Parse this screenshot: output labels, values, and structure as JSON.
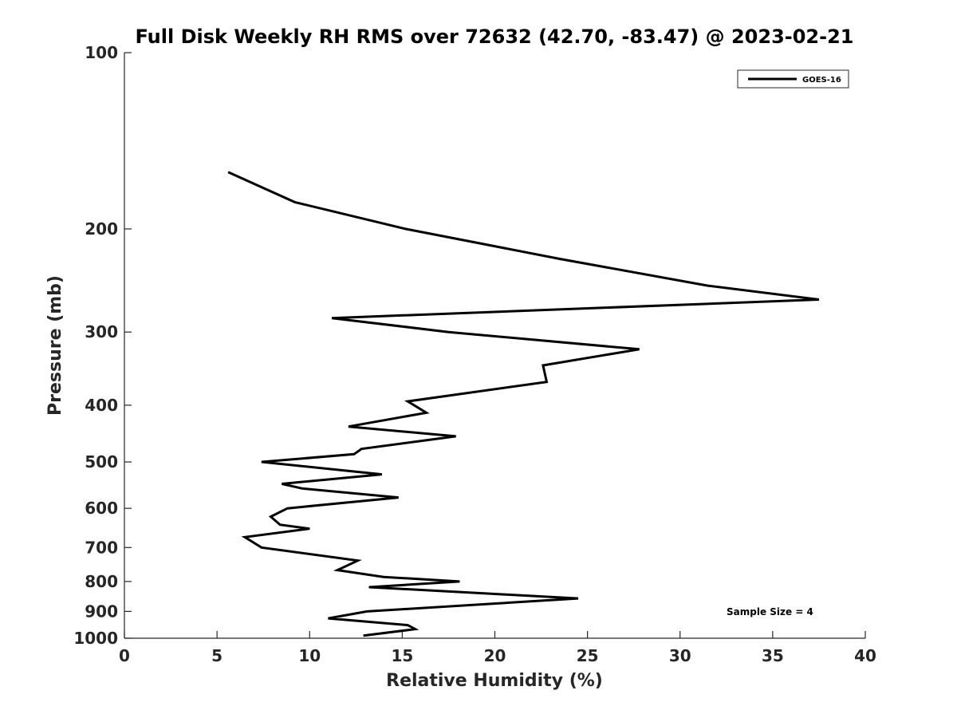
{
  "chart_data": {
    "type": "line",
    "title": "Full Disk Weekly RH RMS over 72632 (42.70, -83.47) @ 2023-02-21",
    "xlabel": "Relative Humidity (%)",
    "ylabel": "Pressure (mb)",
    "xlim": [
      0,
      40
    ],
    "ylim": [
      100,
      1000
    ],
    "y_scale": "log",
    "y_inverted": true,
    "x_ticks": [
      0,
      5,
      10,
      15,
      20,
      25,
      30,
      35,
      40
    ],
    "y_ticks": [
      100,
      200,
      300,
      400,
      500,
      600,
      700,
      800,
      900,
      1000
    ],
    "grid": false,
    "legend_position": "top-right",
    "annotation": "Sample Size = 4",
    "series": [
      {
        "name": "GOES-16",
        "color": "#000000",
        "points": [
          {
            "x": 5.6,
            "y": 160
          },
          {
            "x": 9.2,
            "y": 180
          },
          {
            "x": 15.2,
            "y": 200
          },
          {
            "x": 23.5,
            "y": 225
          },
          {
            "x": 31.5,
            "y": 250
          },
          {
            "x": 37.5,
            "y": 264
          },
          {
            "x": 11.2,
            "y": 284
          },
          {
            "x": 17.5,
            "y": 300
          },
          {
            "x": 27.8,
            "y": 321
          },
          {
            "x": 22.6,
            "y": 342
          },
          {
            "x": 22.8,
            "y": 365
          },
          {
            "x": 15.3,
            "y": 394
          },
          {
            "x": 16.3,
            "y": 412
          },
          {
            "x": 12.1,
            "y": 435
          },
          {
            "x": 17.9,
            "y": 452
          },
          {
            "x": 12.8,
            "y": 475
          },
          {
            "x": 12.4,
            "y": 485
          },
          {
            "x": 7.4,
            "y": 500
          },
          {
            "x": 13.9,
            "y": 525
          },
          {
            "x": 8.5,
            "y": 545
          },
          {
            "x": 9.6,
            "y": 555
          },
          {
            "x": 14.8,
            "y": 575
          },
          {
            "x": 8.8,
            "y": 600
          },
          {
            "x": 7.9,
            "y": 620
          },
          {
            "x": 8.4,
            "y": 640
          },
          {
            "x": 10.0,
            "y": 650
          },
          {
            "x": 6.5,
            "y": 672
          },
          {
            "x": 7.4,
            "y": 700
          },
          {
            "x": 12.6,
            "y": 737
          },
          {
            "x": 11.5,
            "y": 765
          },
          {
            "x": 14.0,
            "y": 786
          },
          {
            "x": 18.1,
            "y": 800
          },
          {
            "x": 13.2,
            "y": 818
          },
          {
            "x": 20.6,
            "y": 842
          },
          {
            "x": 24.5,
            "y": 855
          },
          {
            "x": 13.1,
            "y": 900
          },
          {
            "x": 11.0,
            "y": 925
          },
          {
            "x": 15.3,
            "y": 950
          },
          {
            "x": 15.7,
            "y": 965
          },
          {
            "x": 12.9,
            "y": 990
          }
        ]
      }
    ]
  }
}
